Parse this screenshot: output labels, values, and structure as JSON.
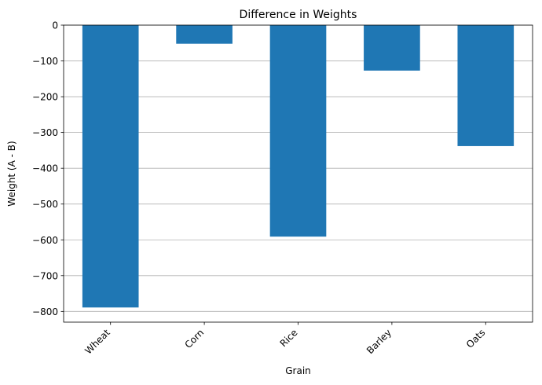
{
  "chart_data": {
    "type": "bar",
    "title": "Difference in Weights",
    "xlabel": "Grain",
    "ylabel": "Weight (A - B)",
    "categories": [
      "Wheat",
      "Corn",
      "Rice",
      "Barley",
      "Oats"
    ],
    "values": [
      -789,
      -52,
      -591,
      -127,
      -338
    ],
    "ylim": [
      -830,
      0
    ],
    "yticks": [
      0,
      -100,
      -200,
      -300,
      -400,
      -500,
      -600,
      -700,
      -800
    ],
    "ytick_labels": [
      "0",
      "−100",
      "−200",
      "−300",
      "−400",
      "−500",
      "−600",
      "−700",
      "−800"
    ],
    "grid": "y",
    "bar_color": "#1f77b4",
    "grid_color": "#b0b0b0"
  }
}
